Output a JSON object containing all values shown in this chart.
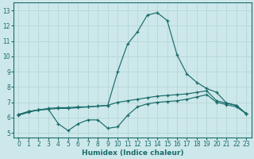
{
  "xlabel": "Humidex (Indice chaleur)",
  "bg_color": "#cde8ea",
  "grid_color": "#b8d8da",
  "line_color": "#1a6b6b",
  "xlim": [
    -0.5,
    23.5
  ],
  "ylim": [
    4.7,
    13.5
  ],
  "yticks": [
    5,
    6,
    7,
    8,
    9,
    10,
    11,
    12,
    13
  ],
  "xticks": [
    0,
    1,
    2,
    3,
    4,
    5,
    6,
    7,
    8,
    9,
    10,
    11,
    12,
    13,
    14,
    15,
    16,
    17,
    18,
    19,
    20,
    21,
    22,
    23
  ],
  "line_peaked_x": [
    0,
    1,
    2,
    3,
    4,
    5,
    6,
    7,
    8,
    9,
    10,
    11,
    12,
    13,
    14,
    15,
    16,
    17,
    18,
    19,
    20,
    21,
    22,
    23
  ],
  "line_peaked_y": [
    6.2,
    6.4,
    6.5,
    6.6,
    6.65,
    6.65,
    6.7,
    6.7,
    6.75,
    6.8,
    9.0,
    10.8,
    11.6,
    12.7,
    12.85,
    12.35,
    10.1,
    8.85,
    8.3,
    7.9,
    7.65,
    6.95,
    6.8,
    6.25
  ],
  "line_upper_x": [
    0,
    1,
    2,
    3,
    4,
    5,
    6,
    7,
    8,
    9,
    10,
    11,
    12,
    13,
    14,
    15,
    16,
    17,
    18,
    19,
    20,
    21,
    22,
    23
  ],
  "line_upper_y": [
    6.2,
    6.4,
    6.5,
    6.55,
    6.6,
    6.6,
    6.65,
    6.7,
    6.75,
    6.8,
    7.0,
    7.1,
    7.2,
    7.3,
    7.4,
    7.45,
    7.5,
    7.55,
    7.65,
    7.75,
    7.1,
    6.95,
    6.8,
    6.25
  ],
  "line_lower_x": [
    0,
    1,
    2,
    3,
    4,
    5,
    6,
    7,
    8,
    9,
    10,
    11,
    12,
    13,
    14,
    15,
    16,
    17,
    18,
    19,
    20,
    21,
    22,
    23
  ],
  "line_lower_y": [
    6.15,
    6.35,
    6.5,
    6.55,
    5.6,
    5.15,
    5.6,
    5.85,
    5.85,
    5.3,
    5.4,
    6.15,
    6.7,
    6.9,
    7.0,
    7.05,
    7.1,
    7.2,
    7.35,
    7.5,
    7.0,
    6.85,
    6.7,
    6.25
  ],
  "tick_fontsize": 5.5,
  "label_fontsize": 6.5
}
